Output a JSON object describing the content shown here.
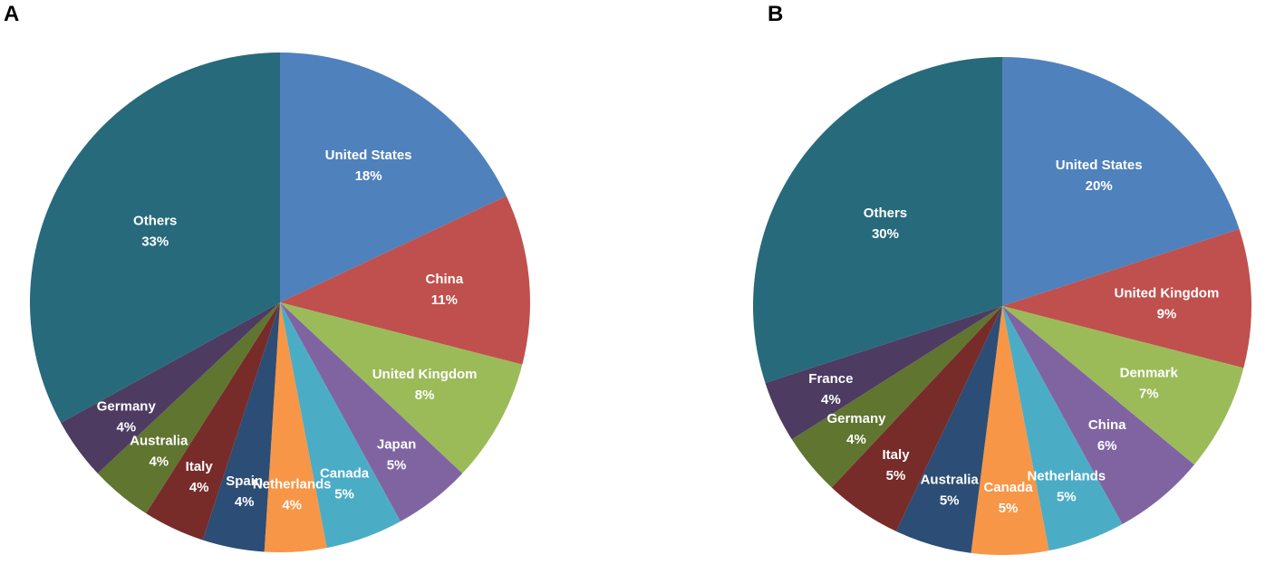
{
  "chart_data": [
    {
      "panel_label": "A",
      "type": "pie",
      "start": "12 o'clock",
      "direction": "clockwise",
      "slices": [
        {
          "label": "United States",
          "pct_label": "18%",
          "value": 18,
          "color": "#4F81BD"
        },
        {
          "label": "China",
          "pct_label": "11%",
          "value": 11,
          "color": "#C0504D"
        },
        {
          "label": "United Kingdom",
          "pct_label": "8%",
          "value": 8,
          "color": "#9BBB59"
        },
        {
          "label": "Japan",
          "pct_label": "5%",
          "value": 5,
          "color": "#8064A2"
        },
        {
          "label": "Canada",
          "pct_label": "5%",
          "value": 5,
          "color": "#4BACC6"
        },
        {
          "label": "Netherlands",
          "pct_label": "4%",
          "value": 4,
          "color": "#F79646"
        },
        {
          "label": "Spain",
          "pct_label": "4%",
          "value": 4,
          "color": "#2C4D75"
        },
        {
          "label": "Italy",
          "pct_label": "4%",
          "value": 4,
          "color": "#772C2A"
        },
        {
          "label": "Australia",
          "pct_label": "4%",
          "value": 4,
          "color": "#5F7530"
        },
        {
          "label": "Germany",
          "pct_label": "4%",
          "value": 4,
          "color": "#4D3B62"
        },
        {
          "label": "Others",
          "pct_label": "33%",
          "value": 33,
          "color": "#276A7C"
        }
      ]
    },
    {
      "panel_label": "B",
      "type": "pie",
      "start": "12 o'clock",
      "direction": "clockwise",
      "slices": [
        {
          "label": "United States",
          "pct_label": "20%",
          "value": 20,
          "color": "#4F81BD"
        },
        {
          "label": "United Kingdom",
          "pct_label": "9%",
          "value": 9,
          "color": "#C0504D"
        },
        {
          "label": "Denmark",
          "pct_label": "7%",
          "value": 7,
          "color": "#9BBB59"
        },
        {
          "label": "China",
          "pct_label": "6%",
          "value": 6,
          "color": "#8064A2"
        },
        {
          "label": "Netherlands",
          "pct_label": "5%",
          "value": 5,
          "color": "#4BACC6"
        },
        {
          "label": "Canada",
          "pct_label": "5%",
          "value": 5,
          "color": "#F79646"
        },
        {
          "label": "Australia",
          "pct_label": "5%",
          "value": 5,
          "color": "#2C4D75"
        },
        {
          "label": "Italy",
          "pct_label": "5%",
          "value": 5,
          "color": "#772C2A"
        },
        {
          "label": "Germany",
          "pct_label": "4%",
          "value": 4,
          "color": "#5F7530"
        },
        {
          "label": "France",
          "pct_label": "4%",
          "value": 4,
          "color": "#4D3B62"
        },
        {
          "label": "Others",
          "pct_label": "30%",
          "value": 30,
          "color": "#276A7C"
        }
      ]
    }
  ]
}
